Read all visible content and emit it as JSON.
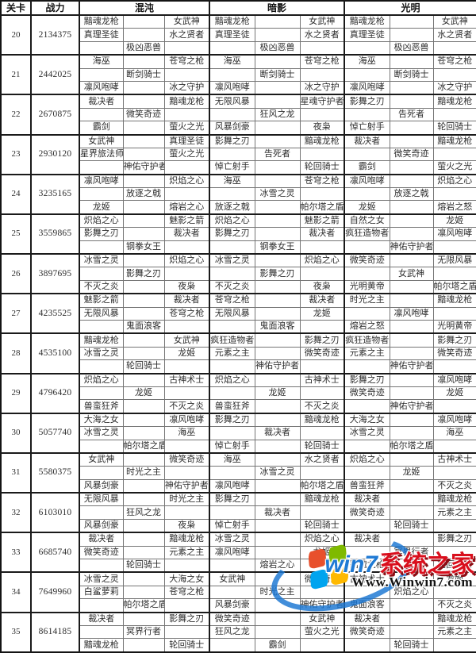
{
  "table": {
    "headers": {
      "level": "关卡",
      "power": "战力",
      "groups": [
        "混沌",
        "暗影",
        "光明"
      ]
    },
    "levels": [
      {
        "level": "20",
        "power": "2134375",
        "chaos": [
          [
            "黯魂龙枪",
            "",
            "女武神"
          ],
          [
            "真理圣徒",
            "",
            "水之贤者"
          ],
          [
            "",
            "极凶恶兽",
            ""
          ]
        ],
        "shadow": [
          [
            "黯魂龙枪",
            "",
            "女武神"
          ],
          [
            "真理圣徒",
            "",
            "水之贤者"
          ],
          [
            "",
            "极凶恶兽",
            ""
          ]
        ],
        "light": [
          [
            "黯魂龙枪",
            "",
            "女武神"
          ],
          [
            "真理圣徒",
            "",
            "水之贤者"
          ],
          [
            "",
            "极凶恶兽",
            ""
          ]
        ]
      },
      {
        "level": "21",
        "power": "2442025",
        "chaos": [
          [
            "海巫",
            "",
            "苍穹之枪"
          ],
          [
            "",
            "断剑骑士",
            ""
          ],
          [
            "凛风咆哮",
            "",
            "冰之守护"
          ]
        ],
        "shadow": [
          [
            "海巫",
            "",
            "苍穹之枪"
          ],
          [
            "",
            "断剑骑士",
            ""
          ],
          [
            "凛风咆哮",
            "",
            "冰之守护"
          ]
        ],
        "light": [
          [
            "海巫",
            "",
            "苍穹之枪"
          ],
          [
            "",
            "断剑骑士",
            ""
          ],
          [
            "凛风咆哮",
            "",
            "冰之守护"
          ]
        ]
      },
      {
        "level": "22",
        "power": "2670875",
        "chaos": [
          [
            "裁决者",
            "",
            "黯魂龙枪"
          ],
          [
            "",
            "微笑奇迹",
            ""
          ],
          [
            "霸剑",
            "",
            "萤火之光"
          ]
        ],
        "shadow": [
          [
            "无限风暴",
            "",
            "星魂守护者"
          ],
          [
            "",
            "狂风之龙",
            ""
          ],
          [
            "风暴剑豪",
            "",
            "夜枭"
          ]
        ],
        "light": [
          [
            "影舞之刃",
            "",
            "黯魂龙枪"
          ],
          [
            "",
            "告死者",
            ""
          ],
          [
            "悼亡射手",
            "",
            "轮回骑士"
          ]
        ]
      },
      {
        "level": "23",
        "power": "2930120",
        "chaos": [
          [
            "女武神",
            "",
            "真理圣徒"
          ],
          [
            "星界旅法师",
            "",
            "萤火之光"
          ],
          [
            "",
            "神佑守护者",
            ""
          ]
        ],
        "shadow": [
          [
            "影舞之刃",
            "",
            "黯魂龙枪"
          ],
          [
            "",
            "告死者",
            ""
          ],
          [
            "悼亡射手",
            "",
            "轮回骑士"
          ]
        ],
        "light": [
          [
            "裁决者",
            "",
            "黯魂龙枪"
          ],
          [
            "",
            "微笑奇迹",
            ""
          ],
          [
            "霸剑",
            "",
            "萤火之光"
          ]
        ]
      },
      {
        "level": "24",
        "power": "3235165",
        "chaos": [
          [
            "凛风咆哮",
            "",
            "炽焰之心"
          ],
          [
            "",
            "放逐之戟",
            ""
          ],
          [
            "龙姬",
            "",
            "熔岩之心"
          ]
        ],
        "shadow": [
          [
            "海巫",
            "",
            "苍穹之枪"
          ],
          [
            "",
            "冰雪之灵",
            ""
          ],
          [
            "放逐之戟",
            "",
            "帕尔塔之盾"
          ]
        ],
        "light": [
          [
            "凛风咆哮",
            "",
            "炽焰之心"
          ],
          [
            "",
            "放逐之戟",
            ""
          ],
          [
            "龙姬",
            "",
            "熔岩之怒"
          ]
        ]
      },
      {
        "level": "25",
        "power": "3559865",
        "chaos": [
          [
            "炽焰之心",
            "",
            "魅影之箭"
          ],
          [
            "影舞之刃",
            "",
            "裁决者"
          ],
          [
            "",
            "钢拳女王",
            ""
          ]
        ],
        "shadow": [
          [
            "炽焰之心",
            "",
            "魅影之箭"
          ],
          [
            "影舞之刃",
            "",
            "裁决者"
          ],
          [
            "",
            "钢拳女王",
            ""
          ]
        ],
        "light": [
          [
            "自然之女",
            "",
            "龙姬"
          ],
          [
            "疯狂造物者",
            "",
            "凛风咆哮"
          ],
          [
            "",
            "神佑守护者",
            ""
          ]
        ]
      },
      {
        "level": "26",
        "power": "3897695",
        "chaos": [
          [
            "冰雪之灵",
            "",
            "炽焰之心"
          ],
          [
            "",
            "影舞之刃",
            ""
          ],
          [
            "不灭之炎",
            "",
            "夜枭"
          ]
        ],
        "shadow": [
          [
            "冰雪之灵",
            "",
            "炽焰之心"
          ],
          [
            "",
            "影舞之刃",
            ""
          ],
          [
            "不灭之炎",
            "",
            "夜枭"
          ]
        ],
        "light": [
          [
            "微笑奇迹",
            "",
            "无限风暴"
          ],
          [
            "",
            "女武神",
            ""
          ],
          [
            "光明黄帝",
            "",
            "帕尔塔之盾"
          ]
        ]
      },
      {
        "level": "27",
        "power": "4235525",
        "chaos": [
          [
            "魅影之箭",
            "",
            "裁决者"
          ],
          [
            "无限风暴",
            "",
            "苍穹之枪"
          ],
          [
            "",
            "鬼面浪客",
            ""
          ]
        ],
        "shadow": [
          [
            "苍穹之枪",
            "",
            "裁决者"
          ],
          [
            "无限风暴",
            "",
            "龙姬"
          ],
          [
            "",
            "鬼面浪客",
            ""
          ]
        ],
        "light": [
          [
            "时光之主",
            "",
            "黯魂龙枪"
          ],
          [
            "",
            "凛风咆哮",
            ""
          ],
          [
            "熔岩之怒",
            "",
            "光明黄帝"
          ]
        ]
      },
      {
        "level": "28",
        "power": "4535100",
        "chaos": [
          [
            "黯魂龙枪",
            "",
            "女武神"
          ],
          [
            "冰雪之灵",
            "",
            "龙姬"
          ],
          [
            "",
            "轮回骑士",
            ""
          ]
        ],
        "shadow": [
          [
            "疯狂造物者",
            "",
            "影舞之刃"
          ],
          [
            "元素之主",
            "",
            "微笑奇迹"
          ],
          [
            "",
            "神佑守护者",
            ""
          ]
        ],
        "light": [
          [
            "疯狂造物者",
            "",
            "影舞之刃"
          ],
          [
            "元素之主",
            "",
            "微笑奇迹"
          ],
          [
            "",
            "神佑守护者",
            ""
          ]
        ]
      },
      {
        "level": "29",
        "power": "4796420",
        "chaos": [
          [
            "炽焰之心",
            "",
            "古神术士"
          ],
          [
            "",
            "龙姬",
            ""
          ],
          [
            "兽蛮狂斧",
            "",
            "不灭之炎"
          ]
        ],
        "shadow": [
          [
            "炽焰之心",
            "",
            "古神术士"
          ],
          [
            "",
            "龙姬",
            ""
          ],
          [
            "兽蛮狂斧",
            "",
            "不灭之炎"
          ]
        ],
        "light": [
          [
            "影舞之刃",
            "",
            "凛风咆哮"
          ],
          [
            "微笑奇迹",
            "",
            "龙姬"
          ],
          [
            "",
            "神佑守护者",
            ""
          ]
        ]
      },
      {
        "level": "30",
        "power": "5057740",
        "chaos": [
          [
            "大海之女",
            "",
            "凛风咆哮"
          ],
          [
            "冰雪之灵",
            "",
            "海巫"
          ],
          [
            "",
            "帕尔塔之盾",
            ""
          ]
        ],
        "shadow": [
          [
            "影舞之刃",
            "",
            "黯魂龙枪"
          ],
          [
            "",
            "裁决者",
            ""
          ],
          [
            "悼亡射手",
            "",
            "轮回骑士"
          ]
        ],
        "light": [
          [
            "大海之女",
            "",
            "凛风咆哮"
          ],
          [
            "冰雪之灵",
            "",
            "海巫"
          ],
          [
            "",
            "帕尔塔之盾",
            ""
          ]
        ]
      },
      {
        "level": "31",
        "power": "5580375",
        "chaos": [
          [
            "女武神",
            "",
            "微笑奇迹"
          ],
          [
            "",
            "时光之主",
            ""
          ],
          [
            "风暴剑豪",
            "",
            "神佑守护者"
          ]
        ],
        "shadow": [
          [
            "海巫",
            "",
            "水之贤者"
          ],
          [
            "",
            "冰雪之灵",
            ""
          ],
          [
            "凛风咆哮",
            "",
            "帕尔塔之盾"
          ]
        ],
        "light": [
          [
            "炽焰之心",
            "",
            "古神术士"
          ],
          [
            "",
            "龙姬",
            ""
          ],
          [
            "兽蛮狂斧",
            "",
            "不灭之炎"
          ]
        ]
      },
      {
        "level": "32",
        "power": "6103010",
        "chaos": [
          [
            "无限风暴",
            "",
            "时光之主"
          ],
          [
            "",
            "狂风之龙",
            ""
          ],
          [
            "风暴剑豪",
            "",
            "夜枭"
          ]
        ],
        "shadow": [
          [
            "影舞之刃",
            "",
            "黯魂龙枪"
          ],
          [
            "",
            "裁决者",
            ""
          ],
          [
            "悼亡射手",
            "",
            "轮回骑士"
          ]
        ],
        "light": [
          [
            "裁决者",
            "",
            "黯魂龙枪"
          ],
          [
            "微笑奇迹",
            "",
            "元素之主"
          ],
          [
            "",
            "轮回骑士",
            ""
          ]
        ]
      },
      {
        "level": "33",
        "power": "6685740",
        "chaos": [
          [
            "裁决者",
            "",
            "黯魂龙枪"
          ],
          [
            "微笑奇迹",
            "",
            "元素之主"
          ],
          [
            "",
            "轮回骑士",
            ""
          ]
        ],
        "shadow": [
          [
            "冰雪之灵",
            "",
            "炽焰之心"
          ],
          [
            "凛风咆哮",
            "",
            "龙姬"
          ],
          [
            "",
            "熔岩之心",
            ""
          ]
        ],
        "light": [
          [
            "裁决者",
            "",
            "影舞之刃"
          ],
          [
            "",
            "冥界行者",
            ""
          ],
          [
            "黯魂龙枪",
            "",
            "轮回骑士"
          ]
        ]
      },
      {
        "level": "34",
        "power": "7649960",
        "chaos": [
          [
            "冰雪之灵",
            "",
            "大海之女"
          ],
          [
            "白鲨萝莉",
            "",
            "苍穹之枪"
          ],
          [
            "",
            "帕尔塔之盾",
            ""
          ]
        ],
        "shadow": [
          [
            "女武神",
            "",
            "微笑奇迹"
          ],
          [
            "",
            "时光之主",
            ""
          ],
          [
            "风暴剑豪",
            "",
            "神佑守护者"
          ]
        ],
        "light": [
          [
            "古神术士",
            "",
            "龙姬"
          ],
          [
            "",
            "炽焰之心",
            ""
          ],
          [
            "鬼面浪客",
            "",
            "不灭之炎"
          ]
        ]
      },
      {
        "level": "35",
        "power": "8614185",
        "chaos": [
          [
            "裁决者",
            "",
            "影舞之刃"
          ],
          [
            "",
            "冥界行者",
            ""
          ],
          [
            "黯魂龙枪",
            "",
            "轮回骑士"
          ]
        ],
        "shadow": [
          [
            "微笑奇迹",
            "",
            "女武神"
          ],
          [
            "狂风之龙",
            "",
            "萤火之光"
          ],
          [
            "",
            "霸剑",
            ""
          ]
        ],
        "light": [
          [
            "裁决者",
            "",
            "黯魂龙枪"
          ],
          [
            "微笑奇迹",
            "",
            "元素之主"
          ],
          [
            "",
            "轮回骑士",
            ""
          ]
        ]
      }
    ]
  },
  "watermark": {
    "prefix": "win7",
    "site_name": "系统之家",
    "url": "Www.Winwin7.com"
  }
}
